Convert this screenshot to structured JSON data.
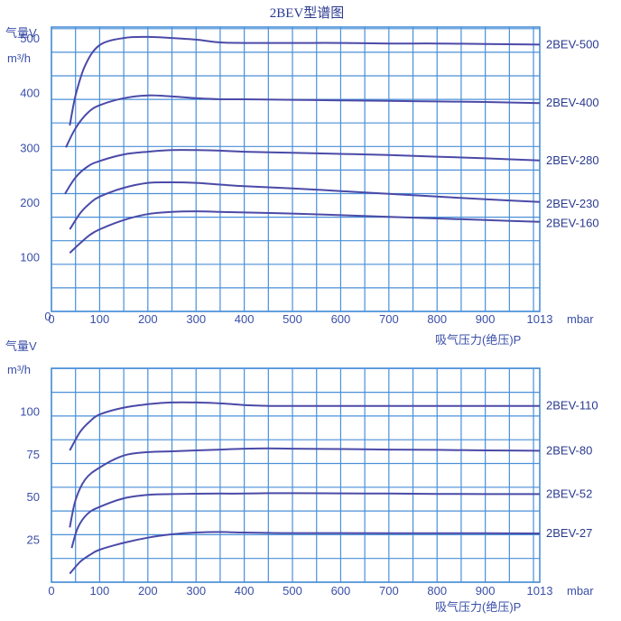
{
  "title": "2BEV型谱图",
  "chart_data": [
    {
      "type": "line",
      "ylabel": "气量V",
      "yunit": "m³/h",
      "xlabel": "吸气压力(绝压)P",
      "xunit": "mbar",
      "xlim": [
        0,
        1013
      ],
      "ylim": [
        0,
        500
      ],
      "x_ticks": [
        "0",
        "100",
        "200",
        "300",
        "400",
        "500",
        "600",
        "700",
        "800",
        "900",
        "1013"
      ],
      "y_ticks": [
        "100",
        "200",
        "300",
        "400",
        "500"
      ],
      "grid": true,
      "series": [
        {
          "name": "2BEV-500",
          "x": [
            38,
            50,
            70,
            100,
            150,
            200,
            250,
            300,
            350,
            400,
            500,
            600,
            700,
            800,
            900,
            1013
          ],
          "y": [
            340,
            395,
            450,
            487,
            500,
            502,
            500,
            497,
            492,
            491,
            491,
            491,
            490,
            490,
            489,
            488
          ]
        },
        {
          "name": "2BEV-400",
          "x": [
            30,
            50,
            75,
            100,
            150,
            200,
            250,
            300,
            350,
            400,
            500,
            600,
            700,
            800,
            900,
            1013
          ],
          "y": [
            300,
            335,
            363,
            377,
            390,
            395,
            393,
            390,
            388,
            388,
            387,
            386,
            385,
            384,
            383,
            381
          ]
        },
        {
          "name": "2BEV-280",
          "x": [
            28,
            50,
            75,
            100,
            150,
            200,
            250,
            300,
            350,
            400,
            500,
            600,
            700,
            800,
            900,
            1013
          ],
          "y": [
            215,
            245,
            265,
            275,
            287,
            292,
            295,
            295,
            294,
            292,
            290,
            288,
            286,
            283,
            280,
            276
          ]
        },
        {
          "name": "2BEV-230",
          "x": [
            38,
            60,
            80,
            100,
            150,
            200,
            250,
            300,
            350,
            400,
            500,
            600,
            700,
            800,
            900,
            1013
          ],
          "y": [
            150,
            180,
            198,
            210,
            226,
            235,
            236,
            235,
            232,
            229,
            225,
            220,
            215,
            210,
            205,
            200
          ]
        },
        {
          "name": "2BEV-160",
          "x": [
            38,
            60,
            80,
            100,
            150,
            200,
            250,
            300,
            350,
            400,
            500,
            600,
            700,
            800,
            900,
            1013
          ],
          "y": [
            107,
            125,
            140,
            150,
            167,
            178,
            182,
            183,
            182,
            181,
            179,
            176,
            173,
            170,
            167,
            164
          ]
        }
      ]
    },
    {
      "type": "line",
      "ylabel": "气量V",
      "yunit": "m³/h",
      "xlabel": "吸气压力(绝压)P",
      "xunit": "mbar",
      "xlim": [
        0,
        1013
      ],
      "ylim": [
        0,
        125
      ],
      "x_ticks": [
        "0",
        "100",
        "200",
        "300",
        "400",
        "500",
        "600",
        "700",
        "800",
        "900",
        "1013"
      ],
      "y_ticks": [
        "25",
        "50",
        "75",
        "100"
      ],
      "grid": true,
      "series": [
        {
          "name": "2BEV-110",
          "x": [
            38,
            60,
            80,
            100,
            150,
            200,
            250,
            300,
            350,
            400,
            450,
            500,
            600,
            700,
            800,
            900,
            1013
          ],
          "y": [
            77,
            88,
            94,
            98,
            102,
            104,
            105,
            105,
            104.5,
            103.5,
            103,
            103,
            103,
            103,
            103,
            103,
            103
          ]
        },
        {
          "name": "2BEV-80",
          "x": [
            38,
            50,
            70,
            100,
            150,
            200,
            250,
            300,
            350,
            400,
            450,
            500,
            600,
            700,
            800,
            900,
            1013
          ],
          "y": [
            32,
            48,
            60,
            67,
            74,
            76,
            76.5,
            77,
            77.5,
            78,
            78.2,
            78,
            77.8,
            77.5,
            77.3,
            77,
            76.8
          ]
        },
        {
          "name": "2BEV-52",
          "x": [
            42,
            55,
            75,
            100,
            150,
            200,
            250,
            300,
            350,
            400,
            450,
            500,
            600,
            700,
            800,
            900,
            1013
          ],
          "y": [
            20,
            32,
            40,
            44,
            49,
            51,
            51.5,
            51.7,
            51.8,
            51.8,
            52,
            52,
            51.9,
            51.8,
            51.6,
            51.5,
            51.5
          ]
        },
        {
          "name": "2BEV-27",
          "x": [
            38,
            60,
            80,
            100,
            150,
            200,
            250,
            300,
            350,
            400,
            450,
            500,
            600,
            700,
            800,
            900,
            1013
          ],
          "y": [
            5,
            12,
            16,
            19,
            23,
            26,
            28,
            29,
            29.3,
            29,
            28.8,
            28.7,
            28.7,
            28.6,
            28.6,
            28.6,
            28.5
          ]
        }
      ]
    }
  ]
}
